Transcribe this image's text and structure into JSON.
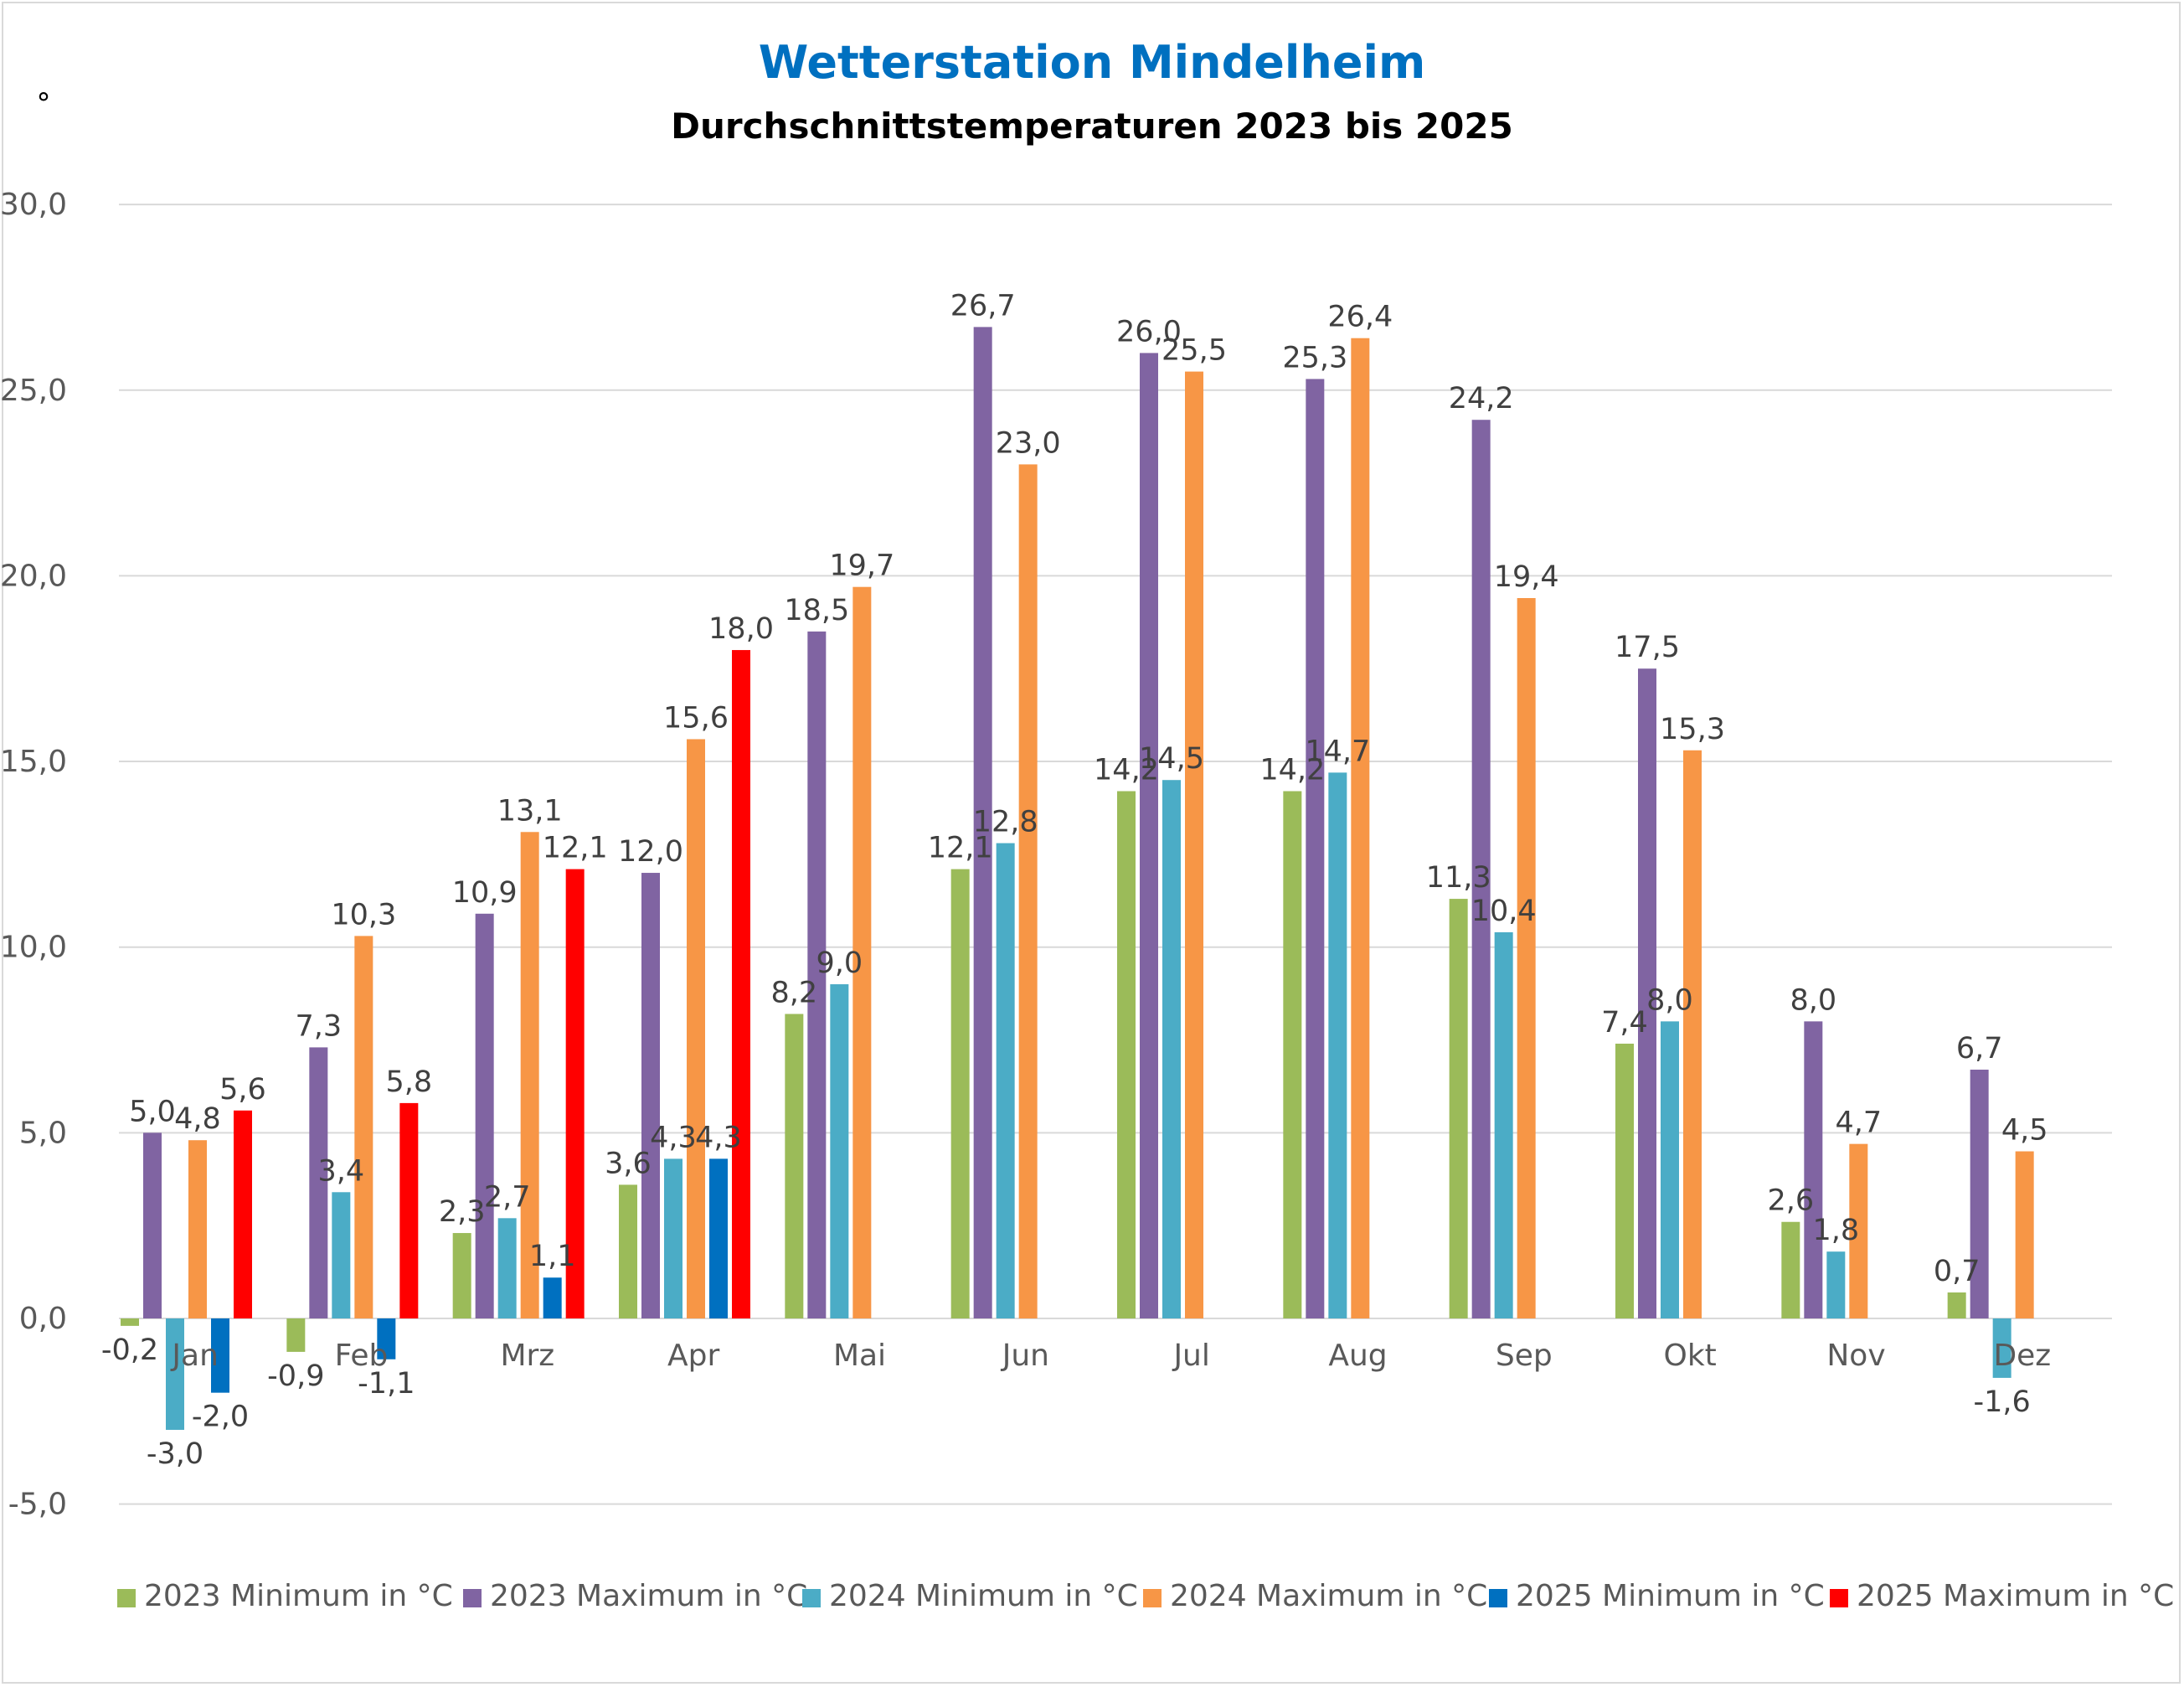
{
  "chart_data": {
    "type": "bar",
    "title": "Wetterstation Mindelheim",
    "subtitle": "Durchschnittstemperaturen 2023 bis 2025",
    "corner_mark": "°",
    "xlabel": "",
    "ylabel": "",
    "ylim": [
      -5,
      30
    ],
    "yticks": [
      -5,
      0,
      5,
      10,
      15,
      20,
      25,
      30
    ],
    "ytick_labels": [
      "-5,0",
      "0,0",
      "5,0",
      "10,0",
      "15,0",
      "20,0",
      "25,0",
      "30,0"
    ],
    "grid": true,
    "legend_position": "bottom",
    "categories": [
      "Jan",
      "Feb",
      "Mrz",
      "Apr",
      "Mai",
      "Jun",
      "Jul",
      "Aug",
      "Sep",
      "Okt",
      "Nov",
      "Dez"
    ],
    "series": [
      {
        "name": "2023 Minimum in °C",
        "color": "#9bbb59",
        "values": [
          -0.2,
          -0.9,
          2.3,
          3.6,
          8.2,
          12.1,
          14.2,
          14.2,
          11.3,
          7.4,
          2.6,
          0.7
        ],
        "labels": [
          "-0,2",
          "-0,9",
          "2,3",
          "3,6",
          "8,2",
          "12,1",
          "14,2",
          "14,2",
          "11,3",
          "7,4",
          "2,6",
          "0,7"
        ]
      },
      {
        "name": "2023 Maximum in °C",
        "color": "#8064a2",
        "values": [
          5.0,
          7.3,
          10.9,
          12.0,
          18.5,
          26.7,
          26.0,
          25.3,
          24.2,
          17.5,
          8.0,
          6.7
        ],
        "labels": [
          "5,0",
          "7,3",
          "10,9",
          "12,0",
          "18,5",
          "26,7",
          "26,0",
          "25,3",
          "24,2",
          "17,5",
          "8,0",
          "6,7"
        ]
      },
      {
        "name": "2024 Minimum in °C",
        "color": "#4bacc6",
        "values": [
          -3.0,
          3.4,
          2.7,
          4.3,
          9.0,
          12.8,
          14.5,
          14.7,
          10.4,
          8.0,
          1.8,
          -1.6
        ],
        "labels": [
          "-3,0",
          "3,4",
          "2,7",
          "4,3",
          "9,0",
          "12,8",
          "14,5",
          "14,7",
          "10,4",
          "8,0",
          "1,8",
          "-1,6"
        ]
      },
      {
        "name": "2024 Maximum in °C",
        "color": "#f79646",
        "values": [
          4.8,
          10.3,
          13.1,
          15.6,
          19.7,
          23.0,
          25.5,
          26.4,
          19.4,
          15.3,
          4.7,
          4.5
        ],
        "labels": [
          "4,8",
          "10,3",
          "13,1",
          "15,6",
          "19,7",
          "23,0",
          "25,5",
          "26,4",
          "19,4",
          "15,3",
          "4,7",
          "4,5"
        ]
      },
      {
        "name": "2025 Minimum in °C",
        "color": "#0070c0",
        "values": [
          -2.0,
          -1.1,
          1.1,
          4.3,
          null,
          null,
          null,
          null,
          null,
          null,
          null,
          null
        ],
        "labels": [
          "-2,0",
          "-1,1",
          "1,1",
          "4,3",
          null,
          null,
          null,
          null,
          null,
          null,
          null,
          null
        ]
      },
      {
        "name": "2025 Maximum in °C",
        "color": "#ff0000",
        "values": [
          5.6,
          5.8,
          12.1,
          18.0,
          null,
          null,
          null,
          null,
          null,
          null,
          null,
          null
        ],
        "labels": [
          "5,6",
          "5,8",
          "12,1",
          "18,0",
          null,
          null,
          null,
          null,
          null,
          null,
          null,
          null
        ]
      }
    ]
  },
  "colors": {
    "title": "#0070c0",
    "subtitle": "#000000",
    "gridline": "#d9d9d9",
    "axis_text": "#595959",
    "data_label": "#404040"
  }
}
